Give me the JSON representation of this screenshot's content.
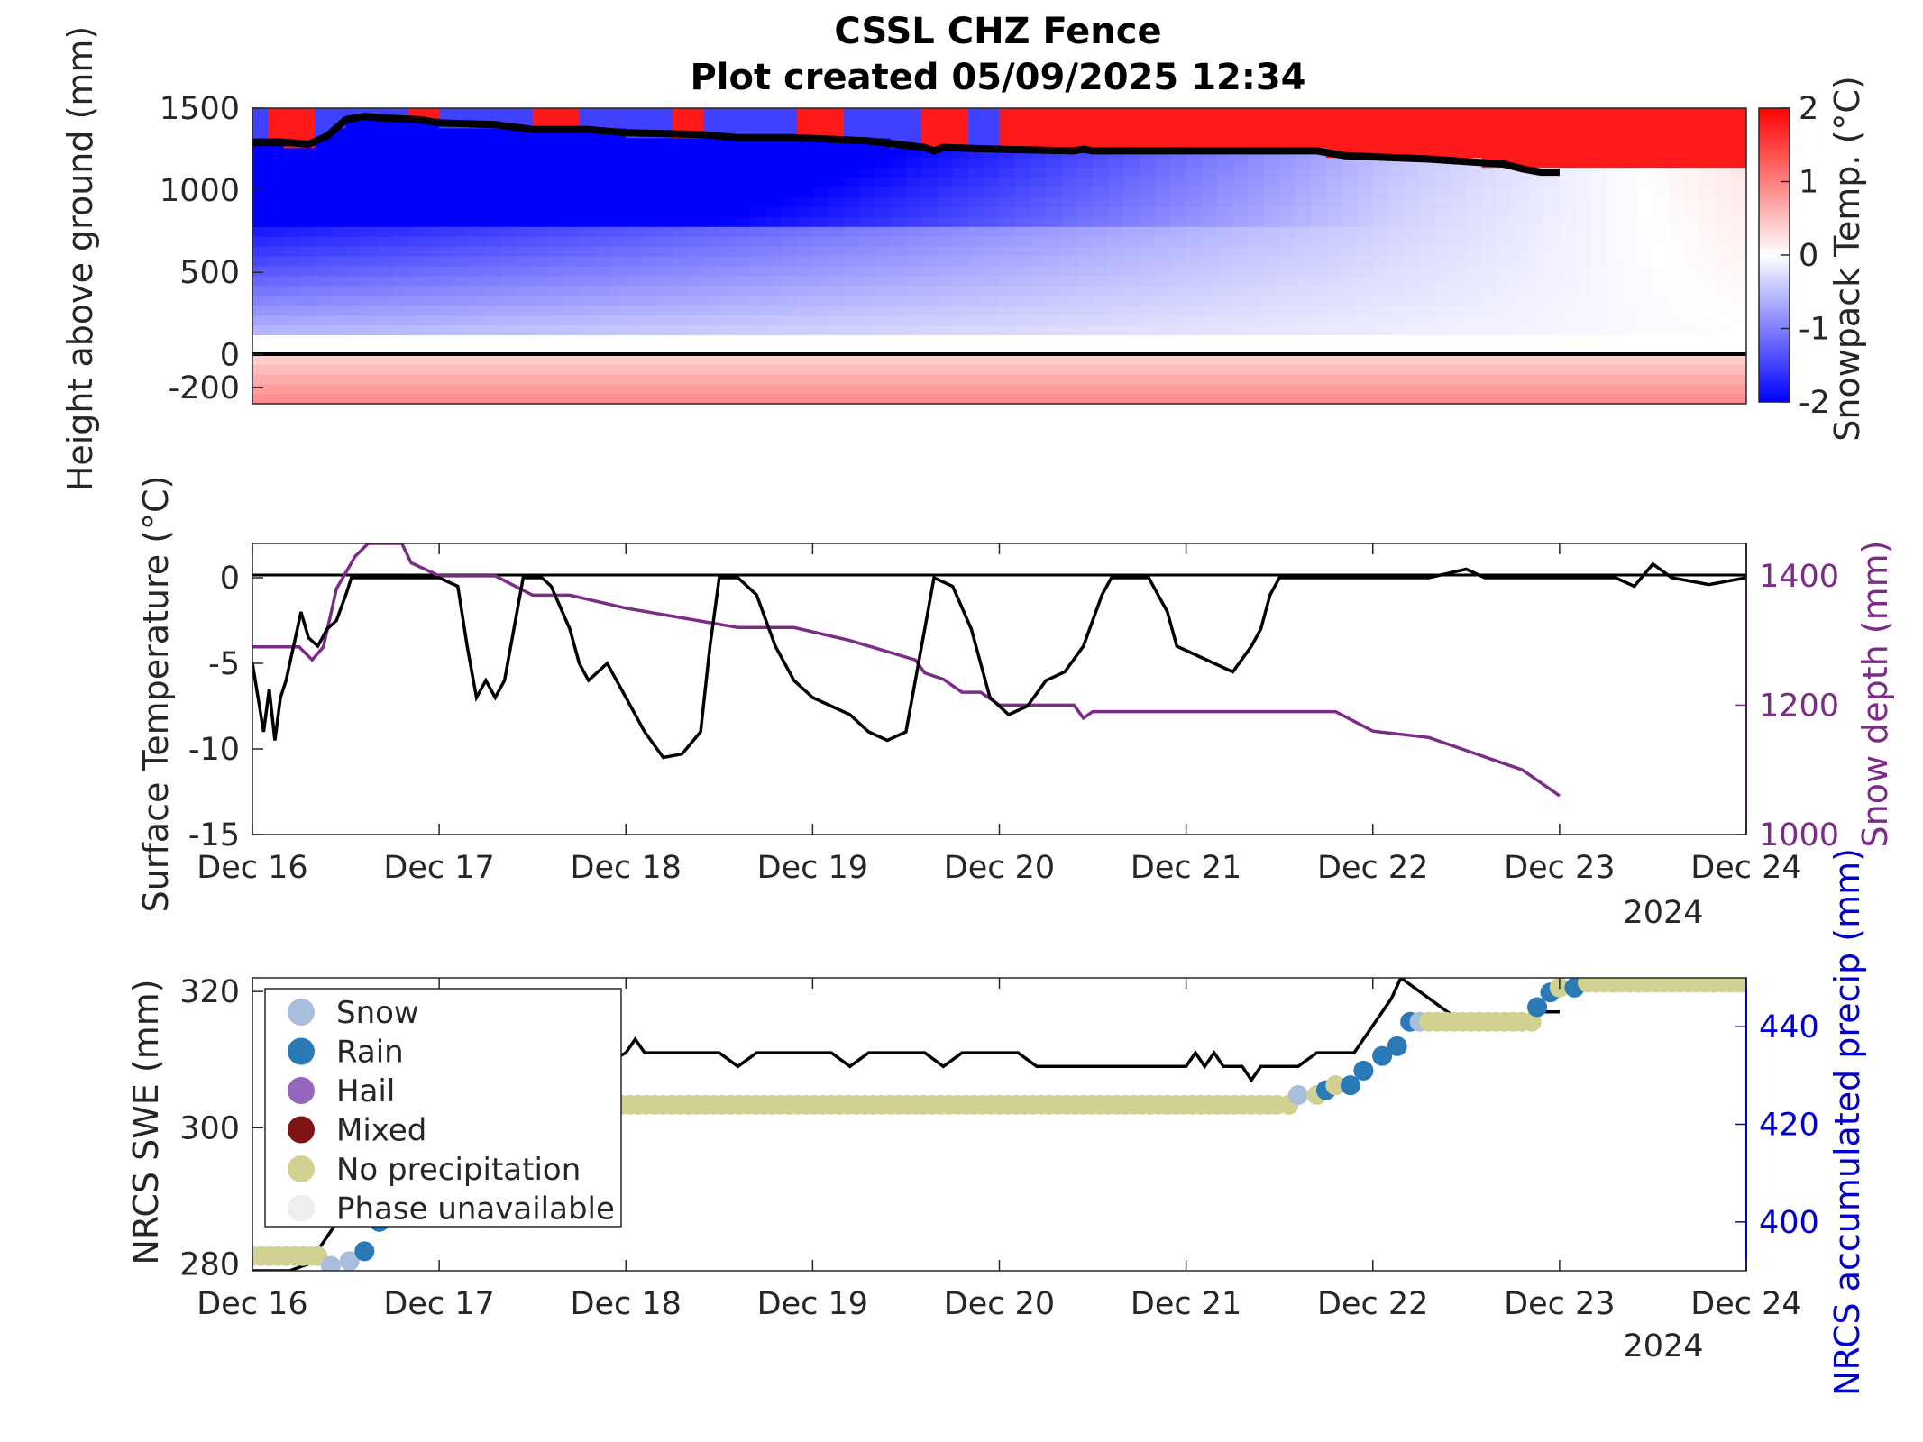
{
  "title": "CSSL CHZ Fence",
  "subtitle": "Plot created 05/09/2025 12:34",
  "colors": {
    "cold": "#0000ff",
    "warm": "#ff0000",
    "surface_temp": "#000000",
    "snow_depth": "#7b2c86",
    "precip_axis": "#0000cc",
    "snow": "#a9bedd",
    "rain": "#2a7ab8",
    "hail": "#9467bd",
    "mixed": "#7f1414",
    "no_precip": "#d1d291",
    "phase_unavailable": "#eeeeee"
  },
  "x_axis": {
    "ticks": [
      "Dec 16",
      "Dec 17",
      "Dec 18",
      "Dec 19",
      "Dec 20",
      "Dec 21",
      "Dec 22",
      "Dec 23",
      "Dec 24"
    ],
    "year": "2024",
    "range_days": [
      16,
      24
    ]
  },
  "chart_data": [
    {
      "type": "heatmap",
      "ylabel": "Height above ground (mm)",
      "y_ticks": [
        "1500",
        "1000",
        "500",
        "0",
        "-200"
      ],
      "ylim": [
        -300,
        1500
      ],
      "colorbar": {
        "label": "Snowpack Temp. (°C)",
        "ticks": [
          "2",
          "1",
          "0",
          "-1",
          "-2"
        ],
        "range": [
          -2,
          2
        ]
      },
      "snow_surface_mm": [
        [
          16.0,
          1290
        ],
        [
          16.2,
          1290
        ],
        [
          16.3,
          1280
        ],
        [
          16.4,
          1330
        ],
        [
          16.5,
          1430
        ],
        [
          16.6,
          1450
        ],
        [
          16.7,
          1440
        ],
        [
          16.9,
          1430
        ],
        [
          17.0,
          1410
        ],
        [
          17.3,
          1400
        ],
        [
          17.5,
          1370
        ],
        [
          17.8,
          1370
        ],
        [
          18.0,
          1350
        ],
        [
          18.4,
          1340
        ],
        [
          18.6,
          1320
        ],
        [
          18.9,
          1320
        ],
        [
          19.1,
          1310
        ],
        [
          19.3,
          1300
        ],
        [
          19.6,
          1260
        ],
        [
          19.65,
          1240
        ],
        [
          19.7,
          1260
        ],
        [
          20.0,
          1250
        ],
        [
          20.4,
          1240
        ],
        [
          20.45,
          1250
        ],
        [
          20.5,
          1240
        ],
        [
          21.0,
          1240
        ],
        [
          21.5,
          1240
        ],
        [
          21.7,
          1240
        ],
        [
          21.85,
          1210
        ],
        [
          22.3,
          1190
        ],
        [
          22.7,
          1160
        ],
        [
          22.8,
          1130
        ],
        [
          22.9,
          1110
        ],
        [
          23.0,
          1110
        ]
      ]
    },
    {
      "type": "line",
      "ylabel": "Surface Temperature (°C)",
      "ylabel_right": "Snow depth (mm)",
      "ylim": [
        -15,
        2
      ],
      "ylim_right": [
        1000,
        1450
      ],
      "y_ticks": [
        "0",
        "-5",
        "-10",
        "-15"
      ],
      "y_ticks_right": [
        "1400",
        "1200",
        "1000"
      ],
      "series": [
        {
          "values_xy": [
            [
              16.0,
              -5
            ],
            [
              16.03,
              -7
            ],
            [
              16.06,
              -9
            ],
            [
              16.09,
              -6.5
            ],
            [
              16.12,
              -9.5
            ],
            [
              16.15,
              -7
            ],
            [
              16.18,
              -6
            ],
            [
              16.22,
              -4
            ],
            [
              16.26,
              -2
            ],
            [
              16.3,
              -3.5
            ],
            [
              16.35,
              -4
            ],
            [
              16.4,
              -3
            ],
            [
              16.45,
              -2.5
            ],
            [
              16.5,
              -1
            ],
            [
              16.53,
              0
            ],
            [
              16.6,
              0
            ],
            [
              17.0,
              0
            ],
            [
              17.1,
              -0.5
            ],
            [
              17.15,
              -4
            ],
            [
              17.2,
              -7
            ],
            [
              17.25,
              -6
            ],
            [
              17.3,
              -7
            ],
            [
              17.35,
              -6
            ],
            [
              17.4,
              -3
            ],
            [
              17.45,
              0
            ],
            [
              17.55,
              0
            ],
            [
              17.6,
              -0.5
            ],
            [
              17.7,
              -3
            ],
            [
              17.75,
              -5
            ],
            [
              17.8,
              -6
            ],
            [
              17.85,
              -5.5
            ],
            [
              17.9,
              -5
            ],
            [
              17.95,
              -6
            ],
            [
              18.0,
              -7
            ],
            [
              18.1,
              -9
            ],
            [
              18.2,
              -10.5
            ],
            [
              18.3,
              -10.3
            ],
            [
              18.4,
              -9
            ],
            [
              18.45,
              -4
            ],
            [
              18.5,
              0
            ],
            [
              18.6,
              0
            ],
            [
              18.7,
              -1
            ],
            [
              18.8,
              -4
            ],
            [
              18.9,
              -6
            ],
            [
              19.0,
              -7
            ],
            [
              19.2,
              -8
            ],
            [
              19.3,
              -9
            ],
            [
              19.4,
              -9.5
            ],
            [
              19.5,
              -9
            ],
            [
              19.6,
              -3
            ],
            [
              19.65,
              0
            ],
            [
              19.75,
              -0.5
            ],
            [
              19.85,
              -3
            ],
            [
              19.95,
              -7
            ],
            [
              20.05,
              -8
            ],
            [
              20.15,
              -7.5
            ],
            [
              20.25,
              -6
            ],
            [
              20.35,
              -5.5
            ],
            [
              20.45,
              -4
            ],
            [
              20.55,
              -1
            ],
            [
              20.6,
              0
            ],
            [
              20.8,
              0
            ],
            [
              20.9,
              -2
            ],
            [
              20.95,
              -4
            ],
            [
              21.05,
              -4.5
            ],
            [
              21.15,
              -5
            ],
            [
              21.25,
              -5.5
            ],
            [
              21.35,
              -4
            ],
            [
              21.4,
              -3
            ],
            [
              21.45,
              -1
            ],
            [
              21.5,
              0
            ],
            [
              22.0,
              0
            ],
            [
              22.3,
              0
            ],
            [
              22.5,
              0.5
            ],
            [
              22.6,
              0
            ],
            [
              23.0,
              0
            ],
            [
              23.3,
              0
            ],
            [
              23.4,
              -0.5
            ],
            [
              23.5,
              0.8
            ],
            [
              23.6,
              0
            ],
            [
              23.8,
              -0.4
            ],
            [
              24.0,
              0
            ]
          ]
        },
        {
          "name_axis": "right",
          "values_xy": [
            [
              16.0,
              1290
            ],
            [
              16.25,
              1290
            ],
            [
              16.32,
              1270
            ],
            [
              16.38,
              1290
            ],
            [
              16.45,
              1380
            ],
            [
              16.55,
              1430
            ],
            [
              16.62,
              1450
            ],
            [
              16.8,
              1450
            ],
            [
              16.85,
              1420
            ],
            [
              17.0,
              1400
            ],
            [
              17.3,
              1400
            ],
            [
              17.5,
              1370
            ],
            [
              17.7,
              1370
            ],
            [
              18.0,
              1350
            ],
            [
              18.4,
              1330
            ],
            [
              18.6,
              1320
            ],
            [
              18.9,
              1320
            ],
            [
              19.2,
              1300
            ],
            [
              19.55,
              1270
            ],
            [
              19.6,
              1250
            ],
            [
              19.7,
              1240
            ],
            [
              19.8,
              1220
            ],
            [
              19.9,
              1220
            ],
            [
              20.0,
              1200
            ],
            [
              20.4,
              1200
            ],
            [
              20.45,
              1180
            ],
            [
              20.5,
              1190
            ],
            [
              21.0,
              1190
            ],
            [
              21.5,
              1190
            ],
            [
              21.8,
              1190
            ],
            [
              22.0,
              1160
            ],
            [
              22.3,
              1150
            ],
            [
              22.6,
              1120
            ],
            [
              22.8,
              1100
            ],
            [
              23.0,
              1060
            ]
          ]
        }
      ]
    },
    {
      "type": "scatter",
      "ylabel": "NRCS SWE (mm)",
      "ylabel_right": "NRCS accumulated precip (mm)",
      "ylim": [
        279,
        322
      ],
      "ylim_right": [
        390,
        450
      ],
      "y_ticks": [
        "320",
        "300",
        "280"
      ],
      "y_ticks_right": [
        "440",
        "420",
        "400"
      ],
      "legend": [
        "Snow",
        "Rain",
        "Hail",
        "Mixed",
        "No precipitation",
        "Phase unavailable"
      ],
      "legend_position": "upper-left",
      "swe_xy": [
        [
          16.0,
          279
        ],
        [
          16.2,
          279
        ],
        [
          16.3,
          280
        ],
        [
          16.4,
          284
        ],
        [
          16.5,
          288
        ],
        [
          16.6,
          300
        ],
        [
          16.7,
          305
        ],
        [
          17.0,
          305
        ],
        [
          17.4,
          305
        ],
        [
          17.7,
          305
        ],
        [
          17.8,
          308
        ],
        [
          18.0,
          311
        ],
        [
          18.05,
          313
        ],
        [
          18.1,
          311
        ],
        [
          18.5,
          311
        ],
        [
          18.6,
          309
        ],
        [
          18.7,
          311
        ],
        [
          19.1,
          311
        ],
        [
          19.2,
          309
        ],
        [
          19.3,
          311
        ],
        [
          19.6,
          311
        ],
        [
          19.7,
          309
        ],
        [
          19.8,
          311
        ],
        [
          20.1,
          311
        ],
        [
          20.2,
          309
        ],
        [
          21.0,
          309
        ],
        [
          21.05,
          311
        ],
        [
          21.1,
          309
        ],
        [
          21.15,
          311
        ],
        [
          21.2,
          309
        ],
        [
          21.3,
          309
        ],
        [
          21.35,
          307
        ],
        [
          21.4,
          309
        ],
        [
          21.6,
          309
        ],
        [
          21.7,
          311
        ],
        [
          21.9,
          311
        ],
        [
          22.0,
          315
        ],
        [
          22.1,
          319
        ],
        [
          22.15,
          322
        ],
        [
          22.3,
          319
        ],
        [
          22.4,
          317
        ],
        [
          22.5,
          315
        ],
        [
          22.8,
          315
        ],
        [
          22.9,
          317
        ],
        [
          23.0,
          317
        ]
      ],
      "precip_points": [
        {
          "x": 16.0,
          "y": 393,
          "phase": "no_precip"
        },
        {
          "x": 16.35,
          "y": 393,
          "phase": "no_precip"
        },
        {
          "x": 16.42,
          "y": 391,
          "phase": "snow"
        },
        {
          "x": 16.52,
          "y": 392,
          "phase": "snow"
        },
        {
          "x": 16.6,
          "y": 394,
          "phase": "rain"
        },
        {
          "x": 16.68,
          "y": 400,
          "phase": "rain"
        },
        {
          "x": 16.7,
          "y": 405,
          "phase": "rain"
        },
        {
          "x": 16.8,
          "y": 410,
          "phase": "rain"
        },
        {
          "x": 16.85,
          "y": 424,
          "phase": "no_precip"
        },
        {
          "x": 21.55,
          "y": 424,
          "phase": "no_precip"
        },
        {
          "x": 21.6,
          "y": 426,
          "phase": "snow"
        },
        {
          "x": 21.7,
          "y": 426,
          "phase": "no_precip"
        },
        {
          "x": 21.75,
          "y": 427,
          "phase": "rain"
        },
        {
          "x": 21.8,
          "y": 428,
          "phase": "no_precip"
        },
        {
          "x": 21.88,
          "y": 428,
          "phase": "rain"
        },
        {
          "x": 21.95,
          "y": 431,
          "phase": "rain"
        },
        {
          "x": 22.05,
          "y": 434,
          "phase": "rain"
        },
        {
          "x": 22.13,
          "y": 436,
          "phase": "rain"
        },
        {
          "x": 22.2,
          "y": 441,
          "phase": "rain"
        },
        {
          "x": 22.25,
          "y": 441,
          "phase": "snow"
        },
        {
          "x": 22.3,
          "y": 441,
          "phase": "no_precip"
        },
        {
          "x": 22.85,
          "y": 441,
          "phase": "no_precip"
        },
        {
          "x": 22.88,
          "y": 444,
          "phase": "rain"
        },
        {
          "x": 22.95,
          "y": 447,
          "phase": "rain"
        },
        {
          "x": 23.0,
          "y": 448,
          "phase": "no_precip"
        },
        {
          "x": 23.08,
          "y": 448,
          "phase": "rain"
        },
        {
          "x": 23.15,
          "y": 449,
          "phase": "no_precip"
        },
        {
          "x": 24.0,
          "y": 449,
          "phase": "no_precip"
        }
      ]
    }
  ]
}
